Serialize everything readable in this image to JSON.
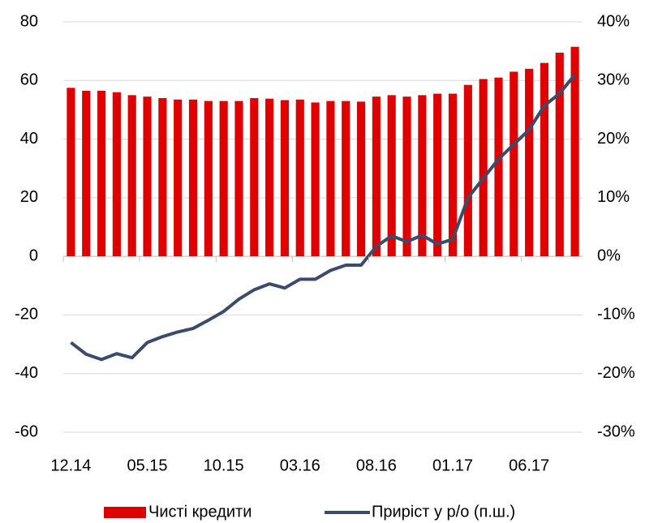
{
  "chart_data": {
    "type": "bar+line",
    "categories": [
      "12.14",
      null,
      null,
      null,
      null,
      "05.15",
      null,
      null,
      null,
      null,
      "10.15",
      null,
      null,
      null,
      null,
      "03.16",
      null,
      null,
      null,
      null,
      "08.16",
      null,
      null,
      null,
      null,
      "01.17",
      null,
      null,
      null,
      null,
      "06.17",
      null,
      null,
      null
    ],
    "series": [
      {
        "name": "Чисті кредити",
        "type": "bar",
        "color": "#e00000",
        "values": [
          57.5,
          56.5,
          56.5,
          56,
          55,
          54.5,
          54,
          53.5,
          53.5,
          53,
          53,
          53,
          54,
          53.8,
          53.3,
          53.5,
          52.5,
          53,
          53,
          52.8,
          54.5,
          55,
          54.5,
          55,
          55.5,
          55.5,
          58.5,
          60.5,
          61,
          63,
          64,
          66,
          69.5,
          71.5
        ]
      },
      {
        "name": "Приріст у р/о (п.ш.)",
        "type": "line",
        "axis": "y2",
        "color": "#3c4a6b",
        "values": [
          -14.7,
          -16.7,
          -17.6,
          -16.6,
          -17.3,
          -14.7,
          -13.7,
          -12.9,
          -12.3,
          -10.9,
          -9.4,
          -7.3,
          -5.7,
          -4.7,
          -5.4,
          -3.9,
          -3.9,
          -2.4,
          -1.5,
          -1.5,
          1.7,
          3.5,
          2.5,
          3.6,
          2.1,
          2.9,
          10,
          13.3,
          16.6,
          19.1,
          21.6,
          25.7,
          27.8,
          31
        ]
      }
    ],
    "ylim": [
      -60,
      80
    ],
    "yticks": [
      -60,
      -40,
      -20,
      0,
      20,
      40,
      60,
      80
    ],
    "y2lim": [
      -30,
      40
    ],
    "y2ticks": [
      {
        "value": -30,
        "label": "-30%"
      },
      {
        "value": -20,
        "label": "-20%"
      },
      {
        "value": -10,
        "label": "-10%"
      },
      {
        "value": 0,
        "label": "0%"
      },
      {
        "value": 10,
        "label": "10%"
      },
      {
        "value": 20,
        "label": "20%"
      },
      {
        "value": 30,
        "label": "30%"
      },
      {
        "value": 40,
        "label": "40%"
      }
    ],
    "grid": true,
    "legend": "bottom"
  }
}
